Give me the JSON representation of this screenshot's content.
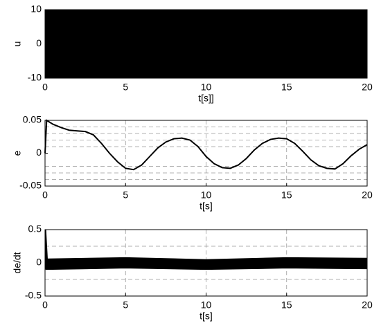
{
  "chart_data": [
    {
      "type": "band",
      "xlabel": "t[s]]",
      "ylabel": "u",
      "x": [
        0,
        20
      ],
      "upper": [
        10,
        10
      ],
      "lower": [
        -10,
        -10
      ],
      "color": "#000000",
      "xlim": [
        0,
        20
      ],
      "xticks": [
        0,
        5,
        10,
        15,
        20
      ],
      "ylim": [
        -10,
        10
      ],
      "yticks": [
        -10,
        0,
        10
      ],
      "grid": false
    },
    {
      "type": "line",
      "xlabel": "t[s]",
      "ylabel": "e",
      "x": [
        0,
        0.1,
        0.5,
        1,
        1.5,
        2,
        2.5,
        3,
        3.5,
        4,
        4.5,
        5,
        5.5,
        6,
        6.5,
        7,
        7.5,
        8,
        8.5,
        9,
        9.5,
        10,
        10.5,
        11,
        11.5,
        12,
        12.5,
        13,
        13.5,
        14,
        14.5,
        15,
        15.5,
        16,
        16.5,
        17,
        17.5,
        18,
        18.5,
        19,
        19.5,
        20
      ],
      "values": [
        0,
        0.05,
        0.044,
        0.039,
        0.035,
        0.034,
        0.033,
        0.028,
        0.015,
        0.0,
        -0.013,
        -0.023,
        -0.025,
        -0.018,
        -0.005,
        0.008,
        0.017,
        0.022,
        0.023,
        0.02,
        0.01,
        -0.005,
        -0.016,
        -0.022,
        -0.023,
        -0.018,
        -0.008,
        0.005,
        0.015,
        0.021,
        0.023,
        0.022,
        0.015,
        0.003,
        -0.01,
        -0.019,
        -0.023,
        -0.024,
        -0.016,
        -0.004,
        0.006,
        0.013
      ],
      "color": "#000000",
      "xlim": [
        0,
        20
      ],
      "xticks": [
        0,
        5,
        10,
        15,
        20
      ],
      "ylim": [
        -0.05,
        0.05
      ],
      "yticks": [
        -0.05,
        0,
        0.05
      ],
      "grid": true,
      "hlines": [
        0.04,
        0.03,
        0.02,
        0.01,
        -0.02,
        -0.03,
        -0.04
      ]
    },
    {
      "type": "band",
      "xlabel": "t[s]",
      "ylabel": "de/dt",
      "x": [
        0,
        0.05,
        0.15,
        5,
        10,
        15,
        20
      ],
      "upper": [
        0.5,
        0.5,
        0.06,
        0.08,
        0.05,
        0.08,
        0.07
      ],
      "lower": [
        0,
        -0.1,
        -0.1,
        -0.08,
        -0.1,
        -0.08,
        -0.09
      ],
      "color": "#000000",
      "xlim": [
        0,
        20
      ],
      "xticks": [
        0,
        5,
        10,
        15,
        20
      ],
      "ylim": [
        -0.5,
        0.5
      ],
      "yticks": [
        -0.5,
        0,
        0.5
      ],
      "grid": true,
      "hlines": [
        0.25,
        -0.25
      ]
    }
  ]
}
